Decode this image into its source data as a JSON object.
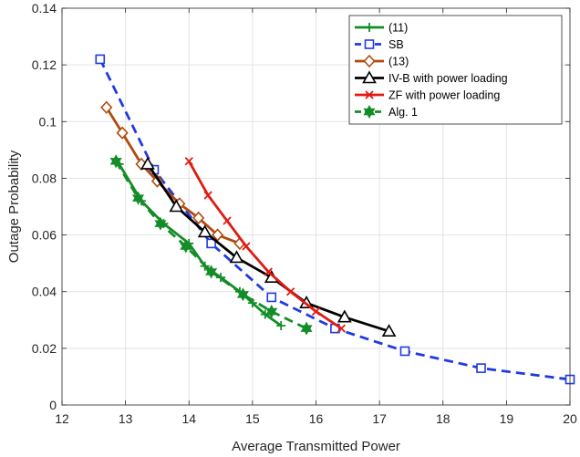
{
  "chart_data": {
    "type": "line",
    "xlabel": "Average  Transmitted Power",
    "ylabel": "Outage Probability",
    "xlim": [
      12,
      20
    ],
    "ylim": [
      0,
      0.14
    ],
    "xticks": [
      12,
      13,
      14,
      15,
      16,
      17,
      18,
      19,
      20
    ],
    "yticks": [
      0,
      0.02,
      0.04,
      0.06,
      0.08,
      0.1,
      0.12,
      0.14
    ],
    "ytick_labels": [
      "0",
      "0.02",
      "0.04",
      "0.06",
      "0.08",
      "0.1",
      "0.12",
      "0.14"
    ],
    "grid": true,
    "legend_position": "top-right",
    "series": [
      {
        "name": "(11)",
        "color": "#138d27",
        "line_style": "solid",
        "marker": "plus",
        "x": [
          12.9,
          13.25,
          13.6,
          14.0,
          14.25,
          14.5,
          14.8,
          15.0,
          15.2,
          15.45
        ],
        "y": [
          0.085,
          0.072,
          0.064,
          0.057,
          0.049,
          0.045,
          0.04,
          0.036,
          0.032,
          0.028
        ]
      },
      {
        "name": "SB",
        "color": "#1f3be0",
        "line_style": "dashed",
        "marker": "square",
        "x": [
          12.6,
          13.45,
          14.35,
          15.3,
          16.3,
          17.4,
          18.6,
          20.0
        ],
        "y": [
          0.122,
          0.083,
          0.057,
          0.038,
          0.027,
          0.019,
          0.013,
          0.009
        ]
      },
      {
        "name": "(13)",
        "color": "#b24a0e",
        "line_style": "solid",
        "marker": "diamond",
        "x": [
          12.7,
          12.95,
          13.25,
          13.5,
          13.85,
          14.15,
          14.45,
          14.8
        ],
        "y": [
          0.105,
          0.096,
          0.085,
          0.079,
          0.071,
          0.066,
          0.06,
          0.057
        ]
      },
      {
        "name": "IV-B with power loading",
        "color": "#000000",
        "line_style": "solid",
        "marker": "triangle",
        "x": [
          13.35,
          13.8,
          14.25,
          14.75,
          15.3,
          15.85,
          16.45,
          17.15
        ],
        "y": [
          0.085,
          0.07,
          0.061,
          0.052,
          0.045,
          0.036,
          0.031,
          0.026
        ]
      },
      {
        "name": "ZF with power loading",
        "color": "#e11a12",
        "line_style": "solid",
        "marker": "x",
        "x": [
          14.0,
          14.3,
          14.6,
          14.9,
          15.25,
          15.6,
          16.0,
          16.4
        ],
        "y": [
          0.086,
          0.074,
          0.065,
          0.056,
          0.047,
          0.04,
          0.033,
          0.027
        ]
      },
      {
        "name": "Alg. 1",
        "color": "#138d27",
        "line_style": "dashed",
        "marker": "hexagram",
        "x": [
          12.85,
          13.2,
          13.55,
          13.95,
          14.35,
          14.85,
          15.3,
          15.85
        ],
        "y": [
          0.086,
          0.073,
          0.064,
          0.056,
          0.047,
          0.039,
          0.033,
          0.027
        ]
      }
    ]
  }
}
